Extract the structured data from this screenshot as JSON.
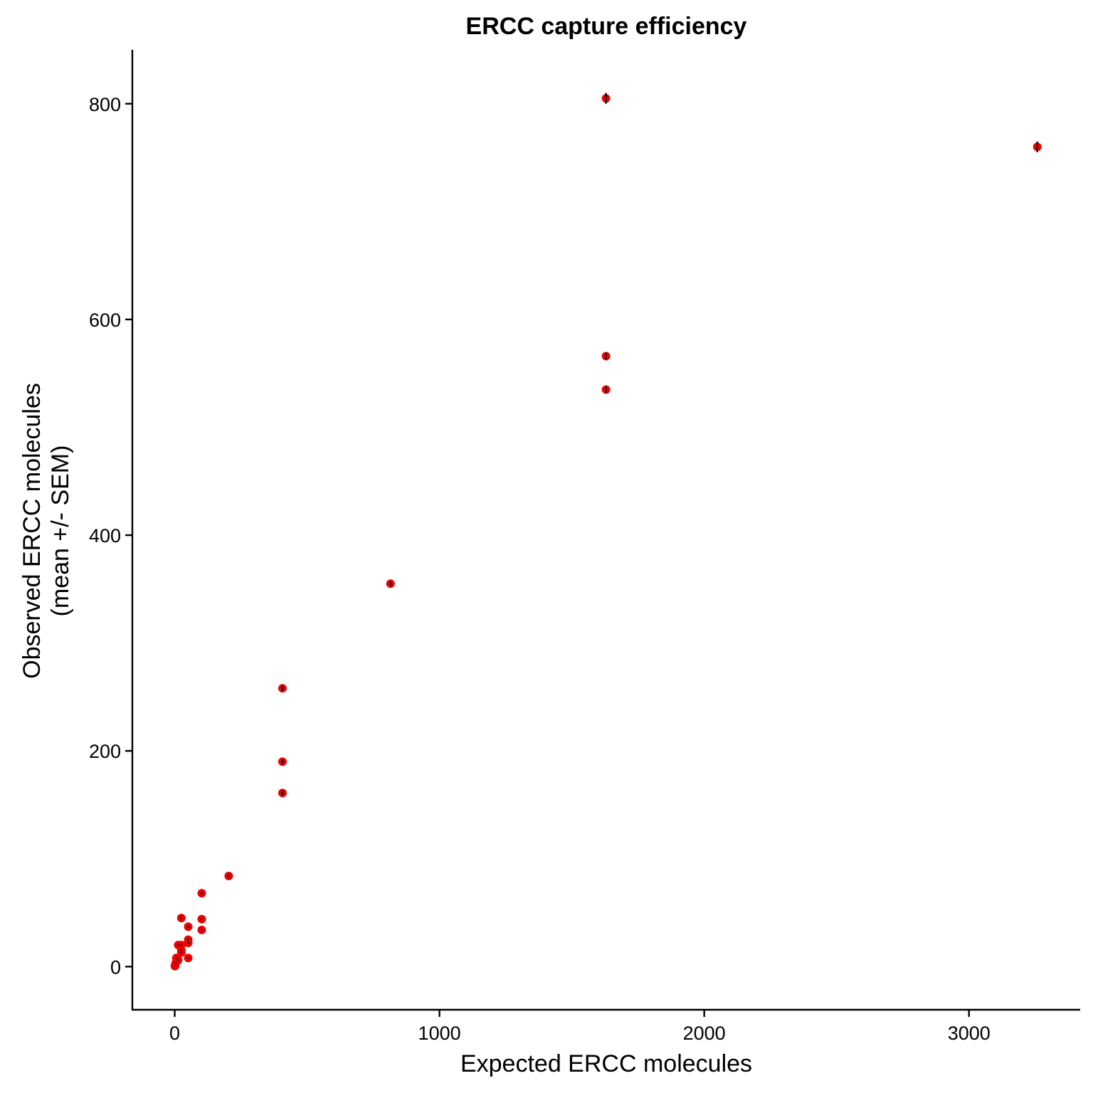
{
  "chart_data": {
    "type": "scatter",
    "title": "ERCC capture efficiency",
    "xlabel": "Expected ERCC molecules",
    "ylabel": [
      "Observed ERCC molecules",
      "(mean +/- SEM)"
    ],
    "xlim": [
      -160,
      3420
    ],
    "ylim": [
      -40,
      850
    ],
    "x_ticks": [
      0,
      1000,
      2000,
      3000
    ],
    "x_tick_labels": [
      "0",
      "1000",
      "2000",
      "3000"
    ],
    "y_ticks": [
      0,
      200,
      400,
      600,
      800
    ],
    "y_tick_labels": [
      "0",
      "200",
      "400",
      "600",
      "800"
    ],
    "grid": false,
    "legend": "none",
    "point_color": "#ee0000",
    "errorbar_color": "#000000",
    "points": [
      {
        "x": 3258,
        "y": 760,
        "sem": 5
      },
      {
        "x": 1629,
        "y": 805,
        "sem": 5
      },
      {
        "x": 1629,
        "y": 566,
        "sem": 3
      },
      {
        "x": 1629,
        "y": 535,
        "sem": 3
      },
      {
        "x": 815,
        "y": 355,
        "sem": 2
      },
      {
        "x": 407,
        "y": 258,
        "sem": 2
      },
      {
        "x": 407,
        "y": 190,
        "sem": 2
      },
      {
        "x": 407,
        "y": 161,
        "sem": 2
      },
      {
        "x": 204,
        "y": 84,
        "sem": 1
      },
      {
        "x": 102,
        "y": 68,
        "sem": 1
      },
      {
        "x": 102,
        "y": 44,
        "sem": 1
      },
      {
        "x": 102,
        "y": 34,
        "sem": 1
      },
      {
        "x": 51,
        "y": 37,
        "sem": 1
      },
      {
        "x": 51,
        "y": 25,
        "sem": 1
      },
      {
        "x": 51,
        "y": 22,
        "sem": 1
      },
      {
        "x": 51,
        "y": 8,
        "sem": 0.5
      },
      {
        "x": 25,
        "y": 45,
        "sem": 1
      },
      {
        "x": 25,
        "y": 20,
        "sem": 1
      },
      {
        "x": 25,
        "y": 15,
        "sem": 1
      },
      {
        "x": 25,
        "y": 13,
        "sem": 0.5
      },
      {
        "x": 13,
        "y": 20,
        "sem": 0.5
      },
      {
        "x": 13,
        "y": 6,
        "sem": 0.5
      },
      {
        "x": 6,
        "y": 8,
        "sem": 0.5
      },
      {
        "x": 6,
        "y": 4,
        "sem": 0.3
      },
      {
        "x": 3,
        "y": 3,
        "sem": 0.2
      },
      {
        "x": 2,
        "y": 1,
        "sem": 0.2
      },
      {
        "x": 1,
        "y": 0.5,
        "sem": 0.1
      },
      {
        "x": 0.5,
        "y": 0.5,
        "sem": 0.1
      }
    ]
  }
}
